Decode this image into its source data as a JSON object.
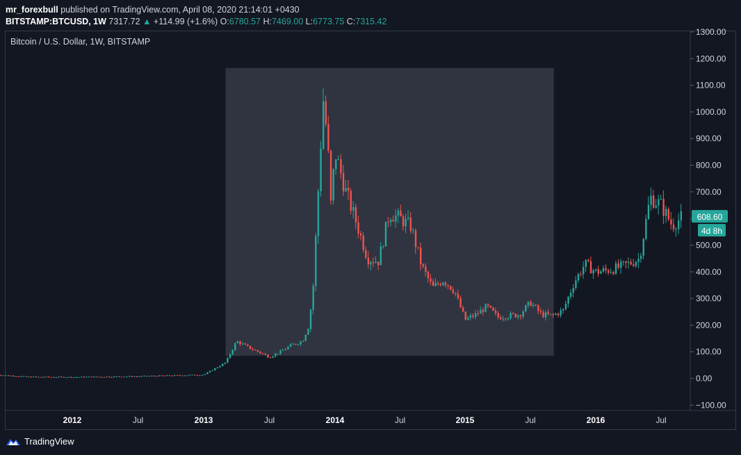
{
  "header": {
    "author": "mr_forexbull",
    "published_text": "published on TradingView.com, April 08, 2020 21:14:01 +0430",
    "symbol": "BITSTAMP:BTCUSD, 1W",
    "price": "7317.72",
    "change": "+114.99 (+1.6%)",
    "o_label": "O:",
    "o_value": "6780.57",
    "h_label": "H:",
    "h_value": "7469.00",
    "l_label": "L:",
    "l_value": "6773.75",
    "c_label": "C:",
    "c_value": "7315.42"
  },
  "chart_title": "Bitcoin / U.S. Dollar, 1W, BITSTAMP",
  "price_badge": "608.60",
  "time_badge": "4d 8h",
  "footer": {
    "brand": "TradingView"
  },
  "colors": {
    "up": "#26a69a",
    "down": "#ef5350",
    "background": "#131722",
    "grid": "#363a45",
    "text": "#d1d4dc",
    "highlight": "#363a45"
  },
  "chart_data": {
    "type": "candlestick",
    "title": "Bitcoin / U.S. Dollar, 1W, BITSTAMP",
    "x_tick_labels": [
      "2012",
      "Jul",
      "2013",
      "Jul",
      "2014",
      "Jul",
      "2015",
      "Jul",
      "2016",
      "Jul"
    ],
    "y_tick_labels": [
      "1300.00",
      "1200.00",
      "1100.00",
      "1000.00",
      "900.00",
      "800.00",
      "700.00",
      "600.00",
      "500.00",
      "400.00",
      "300.00",
      "200.00",
      "100.00",
      "0.00",
      "−100.00"
    ],
    "ylim": [
      -100,
      1300
    ],
    "last_price": 608.6,
    "highlight_region": {
      "from": "2013-03",
      "to": "2015-08",
      "price_low": 85,
      "price_high": 1165
    },
    "anchors": [
      {
        "t": "2011-06",
        "p": 14
      },
      {
        "t": "2011-09",
        "p": 6
      },
      {
        "t": "2012-01",
        "p": 5
      },
      {
        "t": "2012-07",
        "p": 8
      },
      {
        "t": "2013-01",
        "p": 14
      },
      {
        "t": "2013-03",
        "p": 60
      },
      {
        "t": "2013-04",
        "p": 140
      },
      {
        "t": "2013-05",
        "p": 118
      },
      {
        "t": "2013-06",
        "p": 100
      },
      {
        "t": "2013-07",
        "p": 80
      },
      {
        "t": "2013-08",
        "p": 100
      },
      {
        "t": "2013-09",
        "p": 125
      },
      {
        "t": "2013-10",
        "p": 140
      },
      {
        "t": "2013-10-20",
        "p": 200
      },
      {
        "t": "2013-11-01",
        "p": 350
      },
      {
        "t": "2013-11-15",
        "p": 700
      },
      {
        "t": "2013-11-29",
        "p": 1050
      },
      {
        "t": "2013-12-10",
        "p": 900
      },
      {
        "t": "2013-12-20",
        "p": 650
      },
      {
        "t": "2014-01",
        "p": 850
      },
      {
        "t": "2014-02",
        "p": 700
      },
      {
        "t": "2014-03",
        "p": 580
      },
      {
        "t": "2014-04",
        "p": 450
      },
      {
        "t": "2014-05",
        "p": 440
      },
      {
        "t": "2014-06",
        "p": 620
      },
      {
        "t": "2014-07",
        "p": 600
      },
      {
        "t": "2014-08",
        "p": 570
      },
      {
        "t": "2014-09",
        "p": 420
      },
      {
        "t": "2014-10",
        "p": 340
      },
      {
        "t": "2014-11",
        "p": 370
      },
      {
        "t": "2014-12",
        "p": 330
      },
      {
        "t": "2015-01",
        "p": 220
      },
      {
        "t": "2015-02",
        "p": 240
      },
      {
        "t": "2015-03",
        "p": 270
      },
      {
        "t": "2015-04",
        "p": 230
      },
      {
        "t": "2015-05",
        "p": 235
      },
      {
        "t": "2015-06",
        "p": 240
      },
      {
        "t": "2015-07",
        "p": 285
      },
      {
        "t": "2015-08",
        "p": 240
      },
      {
        "t": "2015-09",
        "p": 235
      },
      {
        "t": "2015-10",
        "p": 255
      },
      {
        "t": "2015-11",
        "p": 360
      },
      {
        "t": "2015-12",
        "p": 430
      },
      {
        "t": "2016-01",
        "p": 400
      },
      {
        "t": "2016-02",
        "p": 405
      },
      {
        "t": "2016-03",
        "p": 415
      },
      {
        "t": "2016-04",
        "p": 430
      },
      {
        "t": "2016-05",
        "p": 450
      },
      {
        "t": "2016-06",
        "p": 680
      },
      {
        "t": "2016-07",
        "p": 650
      },
      {
        "t": "2016-08",
        "p": 575
      },
      {
        "t": "2016-09",
        "p": 608
      }
    ]
  }
}
